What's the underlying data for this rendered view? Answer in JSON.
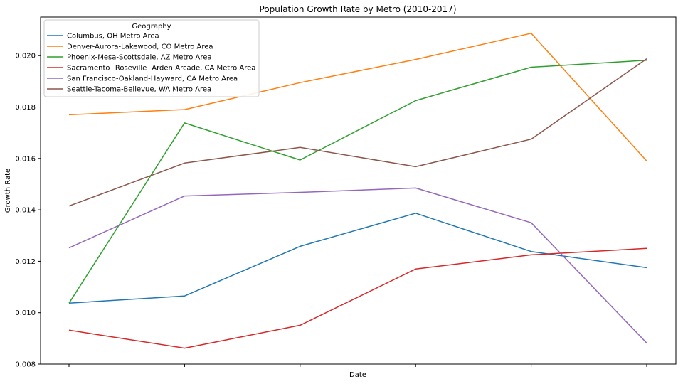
{
  "chart_data": {
    "type": "line",
    "title": "Population Growth Rate by Metro (2010-2017)",
    "xlabel": "Date",
    "ylabel": "Growth Rate",
    "ylim": [
      0.008,
      0.0215
    ],
    "yticks": [
      "0.008",
      "0.010",
      "0.012",
      "0.014",
      "0.016",
      "0.018",
      "0.020"
    ],
    "x_count": 6,
    "x_tick_labels": [
      "",
      "",
      "",
      "",
      "",
      ""
    ],
    "grid": false,
    "legend": {
      "title": "Geography",
      "position": "top-left"
    },
    "series": [
      {
        "name": "Columbus, OH Metro Area",
        "color": "#1f77b4",
        "values": [
          0.01037,
          0.01065,
          0.01258,
          0.01387,
          0.01238,
          0.01175
        ]
      },
      {
        "name": "Denver-Aurora-Lakewood, CO Metro Area",
        "color": "#ff7f0e",
        "values": [
          0.0177,
          0.0179,
          0.01895,
          0.01985,
          0.02087,
          0.0159
        ]
      },
      {
        "name": "Phoenix-Mesa-Scottsdale, AZ Metro Area",
        "color": "#2ca02c",
        "values": [
          0.01037,
          0.01738,
          0.01594,
          0.01825,
          0.01955,
          0.01982
        ]
      },
      {
        "name": "Sacramento--Roseville--Arden-Arcade, CA Metro Area",
        "color": "#d62728",
        "values": [
          0.00932,
          0.00862,
          0.00951,
          0.0117,
          0.01225,
          0.0125
        ]
      },
      {
        "name": "San Francisco-Oakland-Hayward, CA Metro Area",
        "color": "#9467bd",
        "values": [
          0.01252,
          0.01454,
          0.01468,
          0.01485,
          0.0135,
          0.00882
        ]
      },
      {
        "name": "Seattle-Tacoma-Bellevue, WA Metro Area",
        "color": "#8c564b",
        "values": [
          0.01415,
          0.01582,
          0.01643,
          0.01568,
          0.01675,
          0.01988
        ]
      }
    ]
  }
}
